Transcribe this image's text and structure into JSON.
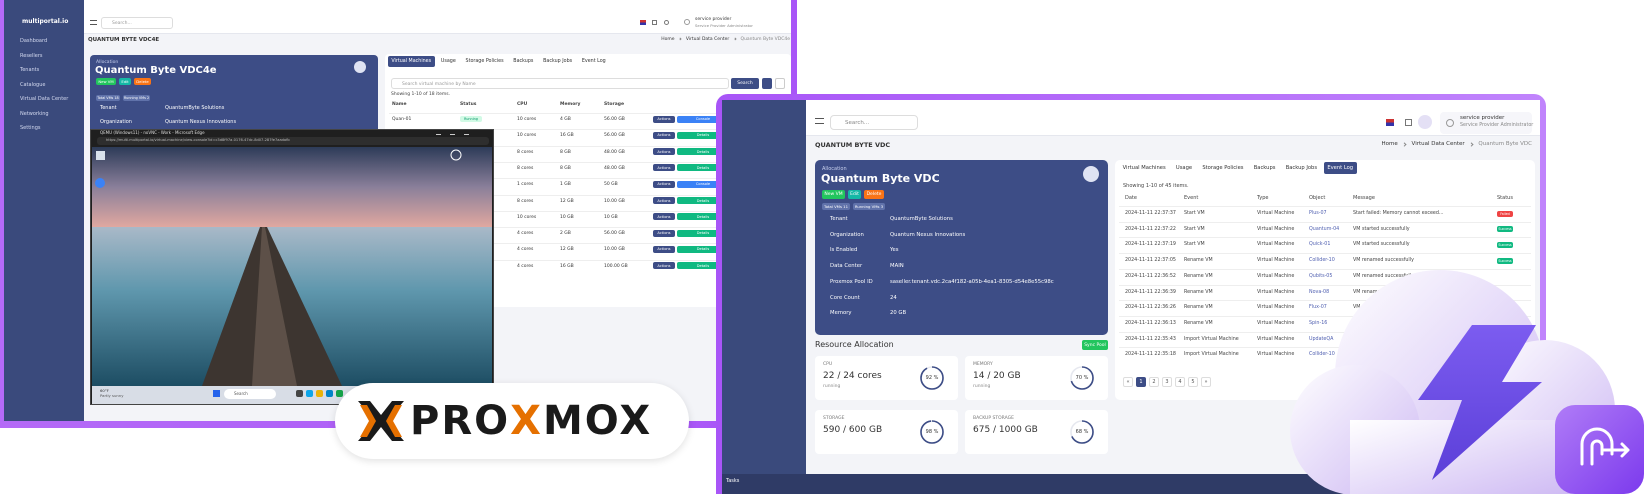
{
  "left_window": {
    "brand": "multiportal.io",
    "sidebar": [
      "Dashboard",
      "Resellers",
      "Tenants",
      "Catalogue",
      "Virtual Data Center",
      "Networking",
      "Settings"
    ],
    "search": "Search...",
    "user": {
      "name": "service provider",
      "role": "Service Provider Administrator"
    },
    "page_title": "QUANTUM BYTE VDC4E",
    "breadcrumb": [
      "Home",
      "Virtual Data Center",
      "Quantum Byte VDC4e"
    ],
    "card": {
      "label": "Allocation",
      "title": "Quantum Byte VDC4e",
      "buttons": [
        "New VM",
        "Edit",
        "Delete"
      ],
      "badges": [
        "Total VMs 18",
        "Running VMs 2"
      ],
      "fields": [
        {
          "label": "Tenant",
          "value": "QuantumByte Solutions"
        },
        {
          "label": "Organization",
          "value": "Quantum Nexus Innovations"
        }
      ]
    },
    "tabs": [
      "Virtual Machines",
      "Usage",
      "Storage Policies",
      "Backups",
      "Backup Jobs",
      "Event Log"
    ],
    "search_placeholder": "Search virtual machine by Name",
    "search_button": "Search",
    "showing": "Showing 1-10 of 18 items.",
    "columns": [
      "Name",
      "Status",
      "CPU",
      "Memory",
      "Storage"
    ],
    "rows": [
      {
        "name": "Quan-01",
        "status": "Running",
        "cpu": "10 cores",
        "memory": "4 GB",
        "storage": "56.00 GB",
        "buttons": [
          "Actions",
          "Console",
          "Details"
        ]
      },
      {
        "cpu": "10 cores",
        "memory": "16 GB",
        "storage": "56.00 GB",
        "buttons": [
          "Actions",
          "Details"
        ]
      },
      {
        "cpu": "8 cores",
        "memory": "8 GB",
        "storage": "48.00 GB",
        "buttons": [
          "Actions",
          "Details"
        ]
      },
      {
        "cpu": "8 cores",
        "memory": "8 GB",
        "storage": "48.00 GB",
        "buttons": [
          "Actions",
          "Details"
        ]
      },
      {
        "cpu": "1 cores",
        "memory": "1 GB",
        "storage": "50 GB",
        "buttons": [
          "Actions",
          "Console",
          "Details"
        ]
      },
      {
        "cpu": "8 cores",
        "memory": "12 GB",
        "storage": "10.00 GB",
        "buttons": [
          "Actions",
          "Details"
        ]
      },
      {
        "cpu": "10 cores",
        "memory": "10 GB",
        "storage": "10 GB",
        "buttons": [
          "Actions",
          "Details"
        ]
      },
      {
        "cpu": "4 cores",
        "memory": "2 GB",
        "storage": "56.00 GB",
        "buttons": [
          "Actions",
          "Details"
        ]
      },
      {
        "cpu": "4 cores",
        "memory": "12 GB",
        "storage": "10.00 GB",
        "buttons": [
          "Actions",
          "Details"
        ]
      },
      {
        "cpu": "4 cores",
        "memory": "16 GB",
        "storage": "100.00 GB",
        "buttons": [
          "Actions",
          "Details"
        ]
      }
    ],
    "console": {
      "title": "QEMU (Windows11) - noVNC - Work - Microsoft Edge",
      "url": "https://multi.multiportal.io/virtual-machine/view-console?id=c3d8f97a-0176-47dc-8d07-287fe7aadafb",
      "weather": "60°F",
      "forecast": "Partly sunny",
      "search": "Search"
    }
  },
  "right_window": {
    "search": "Search...",
    "user": {
      "name": "service provider",
      "role": "Service Provider Administrator"
    },
    "page_title": "QUANTUM BYTE VDC",
    "breadcrumb": [
      "Home",
      "Virtual Data Center",
      "Quantum Byte VDC"
    ],
    "card": {
      "label": "Allocation",
      "title": "Quantum Byte VDC",
      "buttons": [
        "New VM",
        "Edit",
        "Delete"
      ],
      "badges": [
        "Total VMs 11",
        "Running VMs 3"
      ],
      "fields": [
        {
          "label": "Tenant",
          "value": "QuantumByte Solutions"
        },
        {
          "label": "Organization",
          "value": "Quantum Nexus Innovations"
        },
        {
          "label": "Is Enabled",
          "value": "Yes"
        },
        {
          "label": "Data Center",
          "value": "MAIN"
        },
        {
          "label": "Proxmox Pool ID",
          "value": "saseller.tenant.vdc.2ca4f182-a05b-4ea1-8305-d54e8e55c98c"
        },
        {
          "label": "Core Count",
          "value": "24"
        },
        {
          "label": "Memory",
          "value": "20 GB"
        }
      ]
    },
    "resource_title": "Resource Allocation",
    "sync_button": "Sync Pool",
    "resources": [
      {
        "label": "CPU",
        "value": "22 / 24 cores",
        "note": "running",
        "percent": 92,
        "percent_label": "92 %"
      },
      {
        "label": "MEMORY",
        "value": "14 / 20 GB",
        "note": "running",
        "percent": 70,
        "percent_label": "70 %"
      },
      {
        "label": "STORAGE",
        "value": "590 / 600 GB",
        "percent": 98,
        "percent_label": "98 %"
      },
      {
        "label": "BACKUP STORAGE",
        "value": "675 / 1000 GB",
        "percent": 68,
        "percent_label": "68 %"
      }
    ],
    "tabs": [
      "Virtual Machines",
      "Usage",
      "Storage Policies",
      "Backups",
      "Backup Jobs",
      "Event Log"
    ],
    "showing": "Showing 1-10 of 45 items.",
    "columns": [
      "Date",
      "Event",
      "Type",
      "Object",
      "Message",
      "Status"
    ],
    "rows": [
      {
        "date": "2024-11-11 22:37:37",
        "event": "Start VM",
        "type": "Virtual Machine",
        "object": "Plus-07",
        "message": "Start failed: Memory cannot exceed...",
        "status": "Failed"
      },
      {
        "date": "2024-11-11 22:37:22",
        "event": "Start VM",
        "type": "Virtual Machine",
        "object": "Quantum-04",
        "message": "VM started successfully",
        "status": "Success"
      },
      {
        "date": "2024-11-11 22:37:19",
        "event": "Start VM",
        "type": "Virtual Machine",
        "object": "Quick-01",
        "message": "VM started successfully",
        "status": "Success"
      },
      {
        "date": "2024-11-11 22:37:05",
        "event": "Rename VM",
        "type": "Virtual Machine",
        "object": "Collider-10",
        "message": "VM renamed successfully",
        "status": "Success"
      },
      {
        "date": "2024-11-11 22:36:52",
        "event": "Rename VM",
        "type": "Virtual Machine",
        "object": "Qubits-05",
        "message": "VM renamed successfully"
      },
      {
        "date": "2024-11-11 22:36:39",
        "event": "Rename VM",
        "type": "Virtual Machine",
        "object": "Nova-08",
        "message": "VM renamed successfully"
      },
      {
        "date": "2024-11-11 22:36:26",
        "event": "Rename VM",
        "type": "Virtual Machine",
        "object": "Flux-07",
        "message": "VM renamed successfully"
      },
      {
        "date": "2024-11-11 22:36:13",
        "event": "Rename VM",
        "type": "Virtual Machine",
        "object": "Spin-16"
      },
      {
        "date": "2024-11-11 22:35:43",
        "event": "Import Virtual Machine",
        "type": "Virtual Machine",
        "object": "UpdateQA"
      },
      {
        "date": "2024-11-11 22:35:18",
        "event": "Import Virtual Machine",
        "type": "Virtual Machine",
        "object": "Collider-10"
      }
    ],
    "pagination": [
      "«",
      "1",
      "2",
      "3",
      "4",
      "5",
      "»"
    ],
    "footer": "Tasks"
  },
  "logo": {
    "parts": [
      "PRO",
      "X",
      "MOX"
    ]
  }
}
